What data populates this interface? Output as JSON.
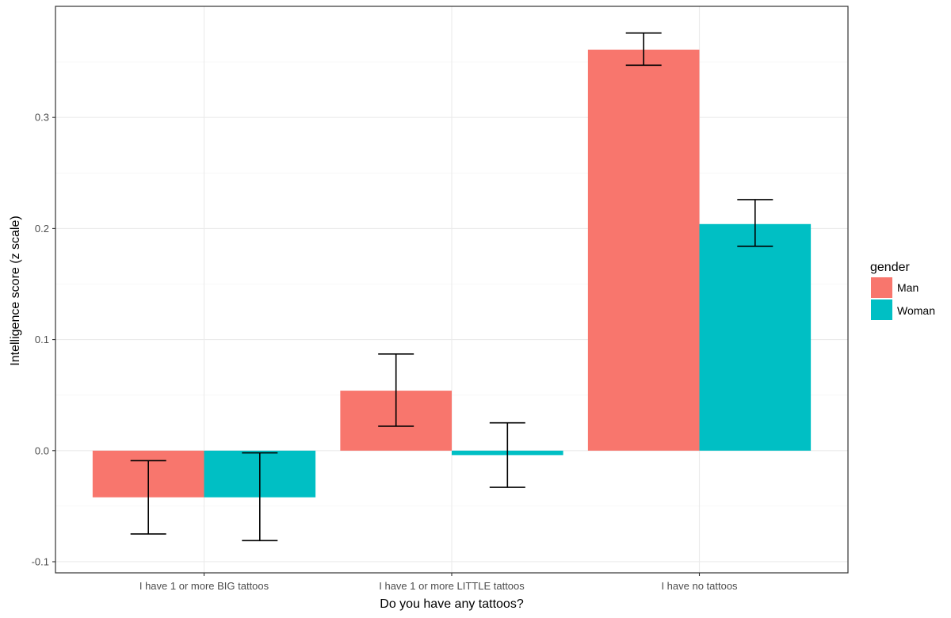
{
  "chart_data": {
    "type": "bar",
    "title": "",
    "xlabel": "Do you have any tattoos?",
    "ylabel": "Intelligence score (z scale)",
    "categories": [
      "I have 1 or more BIG tattoos",
      "I have 1 or more LITTLE tattoos",
      "I have no tattoos"
    ],
    "series": [
      {
        "name": "Man",
        "color": "#F8766D",
        "values": [
          -0.042,
          0.054,
          0.361
        ],
        "err_low": [
          -0.075,
          0.022,
          0.347
        ],
        "err_high": [
          -0.009,
          0.087,
          0.376
        ]
      },
      {
        "name": "Woman",
        "color": "#00BFC4",
        "values": [
          -0.042,
          -0.004,
          0.204
        ],
        "err_low": [
          -0.081,
          -0.033,
          0.184
        ],
        "err_high": [
          -0.002,
          0.025,
          0.226
        ]
      }
    ],
    "ylim": [
      -0.1,
      0.4
    ],
    "yticks": [
      -0.1,
      0.0,
      0.1,
      0.2,
      0.3
    ],
    "ytick_labels": [
      "-0.1",
      "0.0",
      "0.1",
      "0.2",
      "0.3"
    ],
    "grid": true,
    "legend": {
      "title": "gender",
      "entries": [
        "Man",
        "Woman"
      ],
      "position": "right"
    }
  }
}
